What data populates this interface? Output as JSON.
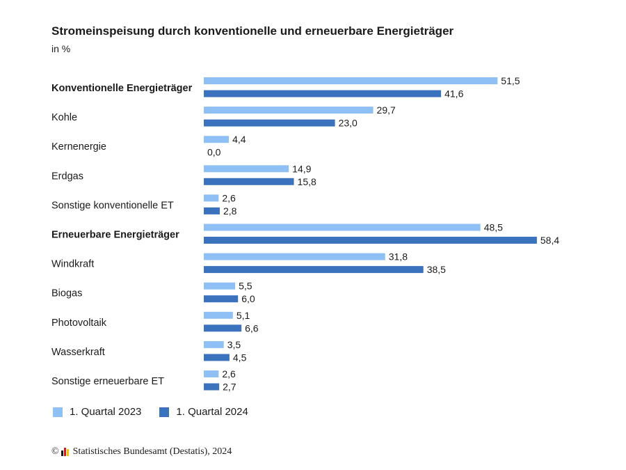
{
  "title": "Stromeinspeisung durch konventionelle und erneuerbare Energieträger",
  "subtitle": "in %",
  "legend": {
    "s2023": "1. Quartal 2023",
    "s2024": "1. Quartal 2024"
  },
  "colors": {
    "s2023": "#8ec0f5",
    "s2024": "#3a72be",
    "logo": [
      "#1a1a1a",
      "#d7191c",
      "#f2c500"
    ]
  },
  "copyright": {
    "symbol": "©",
    "text": "Statistisches Bundesamt (Destatis), 2024",
    "logo_icon": "destatis-logo-icon"
  },
  "chart_data": {
    "type": "bar",
    "orientation": "horizontal",
    "title": "Stromeinspeisung durch konventionelle und erneuerbare Energieträger",
    "unit": "in %",
    "categories": [
      "Konventionelle Energieträger",
      "Kohle",
      "Kernenergie",
      "Erdgas",
      "Sonstige konventionelle ET",
      "Erneuerbare Energieträger",
      "Windkraft",
      "Biogas",
      "Photovoltaik",
      "Wasserkraft",
      "Sonstige erneuerbare ET"
    ],
    "bold_categories": [
      "Konventionelle Energieträger",
      "Erneuerbare Energieträger"
    ],
    "series": [
      {
        "name": "1. Quartal 2023",
        "values": [
          51.5,
          29.7,
          4.4,
          14.9,
          2.6,
          48.5,
          31.8,
          5.5,
          5.1,
          3.5,
          2.6
        ],
        "labels": [
          "51,5",
          "29,7",
          "4,4",
          "14,9",
          "2,6",
          "48,5",
          "31,8",
          "5,5",
          "5,1",
          "3,5",
          "2,6"
        ]
      },
      {
        "name": "1. Quartal 2024",
        "values": [
          41.6,
          23.0,
          0.0,
          15.8,
          2.8,
          58.4,
          38.5,
          6.0,
          6.6,
          4.5,
          2.7
        ],
        "labels": [
          "41,6",
          "23,0",
          "0,0",
          "15,8",
          "2,8",
          "58,4",
          "38,5",
          "6,0",
          "6,6",
          "4,5",
          "2,7"
        ]
      }
    ],
    "xlim": [
      0,
      100
    ],
    "grid": false,
    "legend_position": "bottom-left"
  }
}
